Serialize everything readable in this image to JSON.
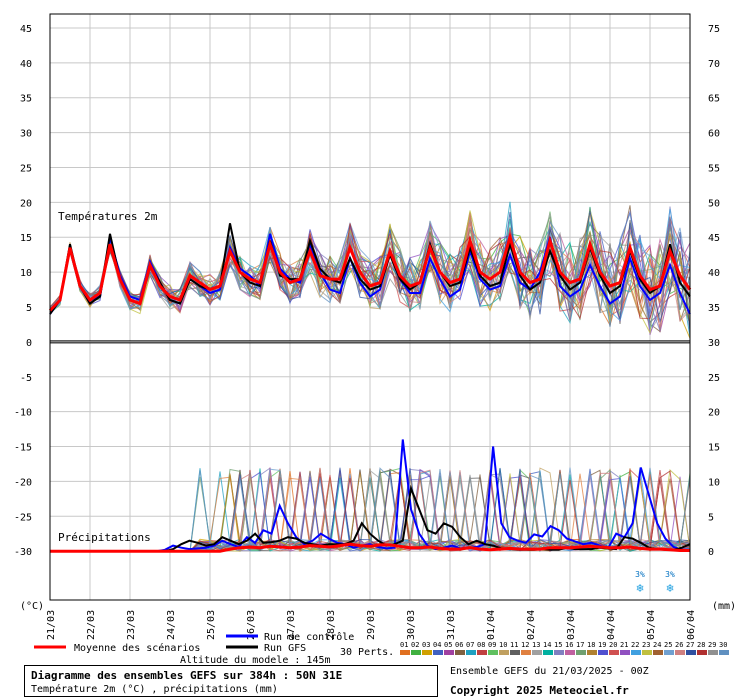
{
  "chart_data": {
    "type": "line",
    "title": "Diagramme des ensembles GEFS sur 384h : 50N 31E",
    "subtitle": "Température 2m (°C) , précipitations (mm)",
    "left_axis_unit": "(°C)",
    "right_axis_unit": "(mm)",
    "left_ticks": [
      45,
      40,
      35,
      30,
      25,
      20,
      15,
      10,
      5,
      0,
      -5,
      -10,
      -15,
      -20,
      -25,
      -30
    ],
    "right_ticks": [
      75,
      70,
      65,
      60,
      55,
      50,
      45,
      40,
      35,
      30,
      25,
      20,
      15,
      10,
      5,
      0
    ],
    "x_labels": [
      "21/03",
      "22/03",
      "23/03",
      "24/03",
      "25/03",
      "26/03",
      "27/03",
      "28/03",
      "29/03",
      "30/03",
      "31/03",
      "01/04",
      "02/04",
      "03/04",
      "04/04",
      "05/04",
      "06/04"
    ],
    "temperature_label": "Températures 2m",
    "precip_label": "Précipitations",
    "snow_markers": [
      {
        "date_index": 14.75,
        "label": "3%"
      },
      {
        "date_index": 15.5,
        "label": "3%"
      }
    ],
    "series": [
      {
        "name": "Moyenne des scénarios",
        "color": "#ff0000",
        "temperature": [
          4.5,
          6,
          13.5,
          8,
          6,
          7,
          14,
          9,
          6,
          5.5,
          11,
          8,
          6.5,
          6,
          9.5,
          8.5,
          7.5,
          8,
          13,
          10,
          9,
          8.5,
          14,
          10,
          8.5,
          9,
          13,
          9.5,
          9,
          9,
          13.5,
          10,
          8,
          8.5,
          13,
          9.5,
          8,
          8.5,
          13.5,
          10,
          8.5,
          9,
          14.5,
          10,
          9,
          10,
          15,
          10,
          8.5,
          9,
          14.5,
          10,
          8.5,
          9,
          14,
          10,
          8,
          8.5,
          13.5,
          9.5,
          7.5,
          8,
          13,
          9.5,
          7.5
        ],
        "precipitation": [
          0,
          0,
          0,
          0,
          0,
          0,
          0,
          0,
          0,
          0,
          0,
          0,
          0,
          0,
          0,
          0,
          0,
          0,
          0.3,
          0.5,
          0.6,
          0.5,
          0.7,
          0.6,
          0.5,
          0.6,
          0.8,
          0.7,
          0.6,
          0.8,
          1,
          0.8,
          0.7,
          0.9,
          0.9,
          0.7,
          0.5,
          0.5,
          0.6,
          0.4,
          0.3,
          0.3,
          0.5,
          0.3,
          0.2,
          0.3,
          0.4,
          0.3,
          0.3,
          0.3,
          0.5,
          0.5,
          0.5,
          0.6,
          0.7,
          0.6,
          0.5,
          0.5,
          0.6,
          0.4,
          0.3,
          0.3,
          0.2,
          0.1,
          0.1
        ]
      },
      {
        "name": "Run de contrôle",
        "color": "#0000ff",
        "temperature": [
          4,
          6,
          13.5,
          8,
          6,
          6.5,
          15,
          9.5,
          6.5,
          6,
          11.5,
          8.5,
          6,
          5.5,
          9,
          8,
          7,
          7.5,
          13.5,
          10.5,
          9.5,
          8,
          15.5,
          10.5,
          9,
          8.5,
          14,
          10,
          7.5,
          7,
          12,
          8.5,
          6.5,
          7.5,
          13,
          9,
          7,
          7,
          12,
          9,
          6.5,
          7.5,
          13,
          9,
          7.5,
          8,
          12.5,
          8.5,
          7.5,
          10,
          15,
          8,
          6.5,
          7.5,
          11,
          8,
          5.5,
          6.5,
          12,
          8,
          6,
          7,
          11,
          7,
          4
        ],
        "precipitation": [
          0,
          0,
          0,
          0,
          0,
          0,
          0,
          0,
          0,
          0,
          0,
          0,
          0,
          0,
          0.2,
          0.8,
          0.5,
          0.3,
          0.4,
          0.5,
          0.8,
          1.5,
          1,
          0.6,
          2,
          1.2,
          3,
          2.5,
          6.5,
          4,
          2,
          1,
          1.5,
          2.5,
          1.8,
          1.2,
          1,
          0.5,
          0.8,
          1,
          0.6,
          0.4,
          0.5,
          16,
          6,
          2.5,
          0.8,
          0.3,
          0.5,
          0.8,
          0.4,
          0.5,
          0.6,
          1,
          15,
          4,
          2,
          1.5,
          1.2,
          2.4,
          2.1,
          3.6,
          3,
          1.8,
          1.4,
          1,
          1.2,
          0.8,
          0.4,
          2.5,
          2,
          4,
          12,
          8,
          4,
          1.8,
          0.6,
          0.2,
          0.2
        ]
      },
      {
        "name": "Run GFS",
        "color": "#000000",
        "temperature": [
          4,
          6,
          14,
          8,
          5.5,
          6.5,
          15.5,
          9,
          6,
          5.5,
          11,
          8.5,
          6,
          5.5,
          9,
          8,
          7.5,
          8,
          17,
          10,
          8.5,
          8,
          14.5,
          9.5,
          9,
          9,
          14.5,
          10.5,
          9,
          8.5,
          12,
          9,
          7.5,
          8,
          12.5,
          9,
          7.5,
          8.5,
          14,
          10,
          8,
          8.5,
          13.5,
          9.5,
          8,
          8.5,
          14,
          9.5,
          7.5,
          8.5,
          13,
          9.5,
          7.5,
          8.5,
          13.5,
          9.5,
          7,
          8,
          13,
          9,
          7,
          8,
          14,
          8.5,
          6.5
        ],
        "precipitation": [
          0,
          0,
          0,
          0,
          0,
          0,
          0,
          0,
          0,
          0,
          0,
          0,
          0,
          0,
          0,
          0.3,
          1,
          1.5,
          1.2,
          0.8,
          1,
          2,
          1.5,
          1,
          1.5,
          2.5,
          1.2,
          1.3,
          1.5,
          2,
          1.8,
          1.2,
          1,
          0.8,
          1,
          1,
          1,
          1.5,
          4,
          2.5,
          1.5,
          0.8,
          1,
          1.5,
          9,
          6,
          3,
          2.5,
          4,
          3.5,
          2,
          1,
          1.5,
          1,
          0.8,
          0.4,
          0.3,
          0.2,
          0.2,
          0.2,
          0.3,
          0.2,
          0.2,
          0.5,
          0.3,
          0.3,
          0.3,
          0.5,
          0.4,
          0.3,
          2,
          1.8,
          1.2,
          0.5,
          0.3,
          0.2,
          0.2,
          0.5,
          1
        ]
      }
    ]
  },
  "legend": {
    "mean_label": "Moyenne des scénarios",
    "control_label": "Run de contrôle",
    "gfs_label": "Run GFS",
    "perts_label": "30 Perts.",
    "altitude": "Altitude du modele : 145m",
    "pert_numbers": [
      "01",
      "02",
      "03",
      "04",
      "05",
      "06",
      "07",
      "08",
      "09",
      "10",
      "11",
      "12",
      "13",
      "14",
      "15",
      "16",
      "17",
      "18",
      "19",
      "20",
      "21",
      "22",
      "23",
      "24",
      "25",
      "26",
      "27",
      "28",
      "29",
      "30"
    ],
    "pert_colors": [
      "#e07020",
      "#40b040",
      "#d0a000",
      "#4060c0",
      "#a040a0",
      "#806040",
      "#20a0c0",
      "#c04040",
      "#60c060",
      "#c0a060",
      "#606060",
      "#e08040",
      "#a0a0a0",
      "#00b0a0",
      "#8080c0",
      "#c060a0",
      "#70a070",
      "#b08030",
      "#5050d0",
      "#d05050",
      "#9050c0",
      "#40a0e0",
      "#c0c040",
      "#a06030",
      "#70a0d0",
      "#d08080",
      "#3050a0",
      "#b03030",
      "#909090",
      "#6090c0"
    ]
  },
  "footer": {
    "title": "Diagramme des ensembles GEFS sur 384h : 50N 31E",
    "subtitle": "Température 2m (°C) , précipitations (mm)",
    "run_info": "Ensemble GEFS du 21/03/2025 - 00Z",
    "copyright": "Copyright 2025 Meteociel.fr"
  }
}
